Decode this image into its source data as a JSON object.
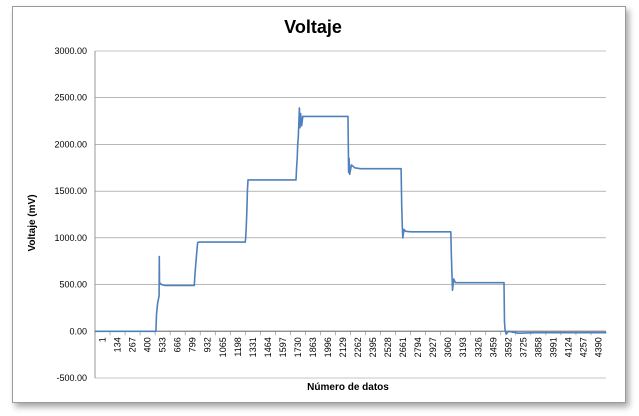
{
  "chart_data": {
    "type": "line",
    "title": "Voltaje",
    "xlabel": "Número de datos",
    "ylabel": "Voltaje (mV)",
    "ylim": [
      -500,
      3000
    ],
    "yticks": [
      "3000.00",
      "2500.00",
      "2000.00",
      "1500.00",
      "1000.00",
      "500.00",
      "0.00",
      "-500.00"
    ],
    "xticks": [
      "1",
      "134",
      "267",
      "400",
      "533",
      "666",
      "799",
      "932",
      "1065",
      "1198",
      "1331",
      "1464",
      "1597",
      "1730",
      "1863",
      "1996",
      "2129",
      "2262",
      "2395",
      "2528",
      "2661",
      "2794",
      "2927",
      "3060",
      "3193",
      "3326",
      "3459",
      "3592",
      "3725",
      "3858",
      "3991",
      "4124",
      "4257",
      "4390"
    ],
    "xlim": [
      1,
      4523
    ],
    "grid": true,
    "legend": "none",
    "line_color": "#4f81bd",
    "series": [
      {
        "values": [
          [
            1,
            0
          ],
          [
            540,
            0
          ],
          [
            545,
            180
          ],
          [
            555,
            300
          ],
          [
            568,
            380
          ],
          [
            570,
            800
          ],
          [
            572,
            520
          ],
          [
            590,
            500
          ],
          [
            620,
            490
          ],
          [
            650,
            490
          ],
          [
            700,
            490
          ],
          [
            880,
            490
          ],
          [
            885,
            600
          ],
          [
            895,
            750
          ],
          [
            905,
            900
          ],
          [
            910,
            950
          ],
          [
            920,
            955
          ],
          [
            1040,
            955
          ],
          [
            1100,
            955
          ],
          [
            1300,
            955
          ],
          [
            1330,
            955
          ],
          [
            1335,
            1000
          ],
          [
            1340,
            1130
          ],
          [
            1345,
            1300
          ],
          [
            1350,
            1500
          ],
          [
            1355,
            1620
          ],
          [
            1400,
            1620
          ],
          [
            1600,
            1620
          ],
          [
            1780,
            1620
          ],
          [
            1785,
            1750
          ],
          [
            1790,
            1850
          ],
          [
            1795,
            2000
          ],
          [
            1800,
            2080
          ],
          [
            1810,
            2390
          ],
          [
            1815,
            2180
          ],
          [
            1820,
            2330
          ],
          [
            1830,
            2200
          ],
          [
            1840,
            2300
          ],
          [
            1870,
            2300
          ],
          [
            2000,
            2300
          ],
          [
            2240,
            2300
          ],
          [
            2245,
            1700
          ],
          [
            2250,
            1850
          ],
          [
            2255,
            1680
          ],
          [
            2270,
            1780
          ],
          [
            2300,
            1750
          ],
          [
            2350,
            1740
          ],
          [
            2500,
            1740
          ],
          [
            2700,
            1740
          ],
          [
            2710,
            1740
          ],
          [
            2715,
            1350
          ],
          [
            2720,
            1120
          ],
          [
            2725,
            1000
          ],
          [
            2735,
            1090
          ],
          [
            2750,
            1070
          ],
          [
            2800,
            1065
          ],
          [
            3000,
            1065
          ],
          [
            3150,
            1065
          ],
          [
            3155,
            800
          ],
          [
            3160,
            600
          ],
          [
            3165,
            440
          ],
          [
            3175,
            560
          ],
          [
            3190,
            520
          ],
          [
            3250,
            520
          ],
          [
            3450,
            520
          ],
          [
            3620,
            520
          ],
          [
            3622,
            350
          ],
          [
            3625,
            100
          ],
          [
            3630,
            10
          ],
          [
            3640,
            -30
          ],
          [
            3660,
            0
          ],
          [
            3700,
            -10
          ],
          [
            3750,
            -20
          ],
          [
            3900,
            -15
          ],
          [
            4100,
            -15
          ],
          [
            4523,
            -15
          ]
        ]
      }
    ]
  }
}
